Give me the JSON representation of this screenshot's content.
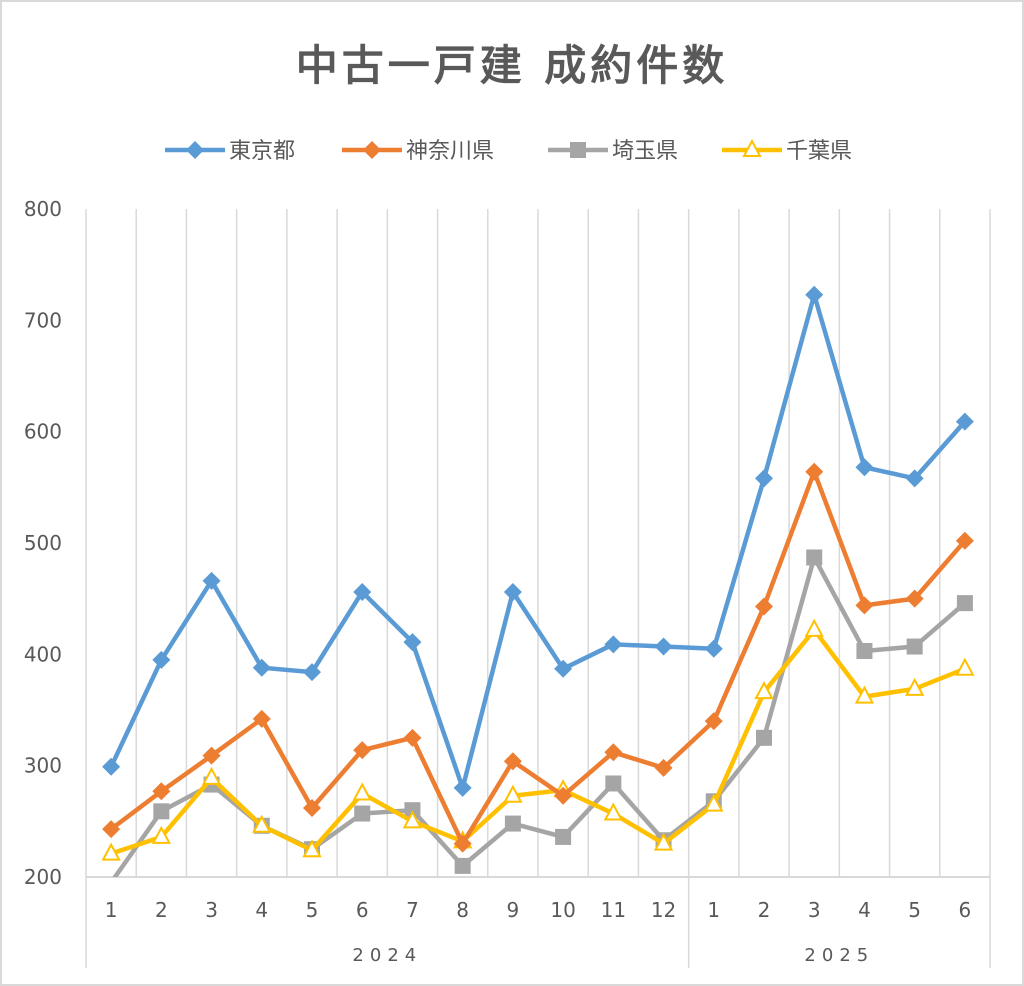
{
  "title": "中古一戸建 成約件数",
  "legend": [
    {
      "label": "東京都",
      "color": "#5b9bd5",
      "marker": "diamond"
    },
    {
      "label": "神奈川県",
      "color": "#ed7d31",
      "marker": "diamond"
    },
    {
      "label": "埼玉県",
      "color": "#a5a5a5",
      "marker": "square"
    },
    {
      "label": "千葉県",
      "color": "#ffc000",
      "marker": "triangle-open"
    }
  ],
  "chart_data": {
    "type": "line",
    "title": "中古一戸建 成約件数",
    "xlabel": "",
    "ylabel": "",
    "ylim": [
      200,
      800
    ],
    "yticks": [
      200,
      300,
      400,
      500,
      600,
      700,
      800
    ],
    "grid": "vertical",
    "legend_position": "top",
    "categories": [
      "2024-1",
      "2024-2",
      "2024-3",
      "2024-4",
      "2024-5",
      "2024-6",
      "2024-7",
      "2024-8",
      "2024-9",
      "2024-10",
      "2024-11",
      "2024-12",
      "2025-1",
      "2025-2",
      "2025-3",
      "2025-4",
      "2025-5",
      "2025-6"
    ],
    "month_labels": [
      "1",
      "2",
      "3",
      "4",
      "5",
      "6",
      "7",
      "8",
      "9",
      "10",
      "11",
      "12",
      "1",
      "2",
      "3",
      "4",
      "5",
      "6"
    ],
    "year_groups": [
      {
        "label": "2024",
        "span": 12
      },
      {
        "label": "2025",
        "span": 6
      }
    ],
    "series": [
      {
        "name": "東京都",
        "color": "#5b9bd5",
        "values": [
          299,
          395,
          466,
          388,
          384,
          456,
          411,
          280,
          456,
          387,
          409,
          407,
          405,
          558,
          723,
          568,
          558,
          609
        ]
      },
      {
        "name": "神奈川県",
        "color": "#ed7d31",
        "values": [
          243,
          277,
          309,
          342,
          262,
          314,
          325,
          230,
          304,
          273,
          312,
          298,
          340,
          443,
          564,
          444,
          450,
          502
        ]
      },
      {
        "name": "埼玉県",
        "color": "#a5a5a5",
        "values": [
          195,
          259,
          283,
          246,
          225,
          257,
          260,
          210,
          248,
          236,
          284,
          233,
          268,
          325,
          487,
          403,
          407,
          446
        ]
      },
      {
        "name": "千葉県",
        "color": "#ffc000",
        "values": [
          221,
          236,
          289,
          246,
          224,
          275,
          250,
          232,
          273,
          278,
          257,
          230,
          265,
          366,
          422,
          362,
          369,
          387
        ]
      }
    ]
  }
}
